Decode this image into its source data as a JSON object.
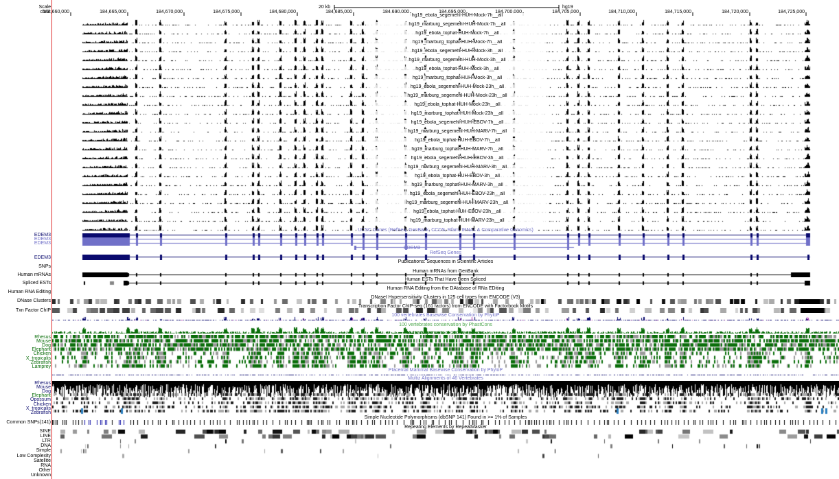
{
  "colors": {
    "black": "#000000",
    "genes": "#0a0a6e",
    "genes_light": "#7070c8",
    "conservation": "#0a6e0a",
    "cons_light": "#4fa84f",
    "divider": "#e03030",
    "snp": "#1a1aa8"
  },
  "scale": {
    "label": "Scale",
    "chrom": "chr1:",
    "bar_text": "20 kb",
    "assembly": "hg19"
  },
  "ruler": {
    "ticks": [
      "184,660,000",
      "184,665,000",
      "184,670,000",
      "184,675,000",
      "184,680,000",
      "184,685,000",
      "184,690,000",
      "184,695,000",
      "184,700,000",
      "184,705,000",
      "184,710,000",
      "184,715,000",
      "184,720,000",
      "184,725,000"
    ]
  },
  "rnaseq_tracks": [
    "hg19_ebola_segemehl-HUH-Mock-7h__all",
    "hg19_marburg_segemehl-HUH-Mock-7h__all",
    "hg19_ebola_tophat-HUH-Mock-7h__all",
    "hg19_marburg_tophat-HUH-Mock-7h__all",
    "hg19_ebola_segemehl-HUH-Mock-3h__all",
    "hg19_marburg_segemehl-HUH-Mock-3h__all",
    "hg19_ebola_tophat-HUH-Mock-3h__all",
    "hg19_marburg_tophat-HUH-Mock-3h__all",
    "hg19_ebola_segemehl-HUH-Mock-23h__all",
    "hg19_marburg_segemehl-HUH-Mock-23h__all",
    "hg19_ebola_tophat-HUH-Mock-23h__all",
    "hg19_marburg_tophat-HUH-Mock-23h__all",
    "hg19_ebola_segemehl-HUH-EBOV-7h__all",
    "hg19_marburg_segemehl-HUH-MARV-7h__all",
    "hg19_ebola_tophat-HUH-EBOV-7h__all",
    "hg19_marburg_tophat-HUH-MARV-7h__all",
    "hg19_ebola_segemehl-HUH-EBOV-3h__all",
    "hg19_marburg_segemehl-HUH-MARV-3h__all",
    "hg19_ebola_tophat-HUH-EBOV-3h__all",
    "hg19_marburg_tophat-HUH-MARV-3h__all",
    "hg19_ebola_segemehl-HUH-EBOV-23h__all",
    "hg19_marburg_segemehl-HUH-MARV-23h__all",
    "hg19_ebola_tophat-HUH-EBOV-23h__all",
    "hg19_marburg_tophat-HUH-MARV-23h__all"
  ],
  "gene_tracks": {
    "ucsc_title": "UCSC Genes (RefSeq, GenBank, CCDS, Rfam, tRNAs & Comparative Genomics)",
    "gene_name": "EDEM3",
    "refseq_title": "RefSeq Genes",
    "publications_title": "Publications: Sequences in Scientific Articles"
  },
  "tracks": {
    "snps_label": "SNPs",
    "human_mrnas": {
      "label": "Human mRNAs",
      "title": "Human mRNAs from GenBank"
    },
    "spliced_ests": {
      "label": "Spliced ESTs",
      "title": "Human ESTs That Have Been Spliced"
    },
    "rna_editing": {
      "label": "Human RNA Editing",
      "title": "Human RNA Editing from the DAtabase of RNa EDiting"
    },
    "dnase": {
      "label": "DNase Clusters",
      "title": "DNaseI Hypersensitivity Clusters in 125 cell types from ENCODE (V3)"
    },
    "txn": {
      "label": "Txn Factor ChIP",
      "title": "Transcription Factor ChIP-seq (161 factors) from ENCODE with Factorbook Motifs"
    },
    "phylop100_title": "100 vertebrates Basewise Conservation by PhyloP",
    "phastcons100_title": "100 vertebrates conservation by PhastCons",
    "multiz100_title": "Multiz Alignments of 100 Vertebrates",
    "placental_title": "Placental Mammal Basewise Conservation by PhyloP",
    "multiz46_title": "Multiz Alignments of 46 Vertebrates",
    "common_snps": {
      "label": "Common SNPs(141)",
      "title": "Simple Nucleotide Polymorphisms (dbSNP 141) Found in >= 1% of Samples"
    },
    "repeatmasker_title": "Repeating Elements by RepeatMasker"
  },
  "species100": [
    "Rhesus",
    "Mouse",
    "Dog",
    "Elephant",
    "Chicken",
    "X_tropicalis",
    "Zebrafish",
    "Lamprey"
  ],
  "species46": [
    "Rhesus",
    "Mouse",
    "Dog",
    "Elephant",
    "Opossum",
    "Chicken",
    "X_tropicalis",
    "Zebrafish"
  ],
  "repeat_classes": [
    "SINE",
    "LINE",
    "LTR",
    "DNA",
    "Simple",
    "Low Complexity",
    "Satellite",
    "RNA",
    "Other",
    "Unknown"
  ]
}
